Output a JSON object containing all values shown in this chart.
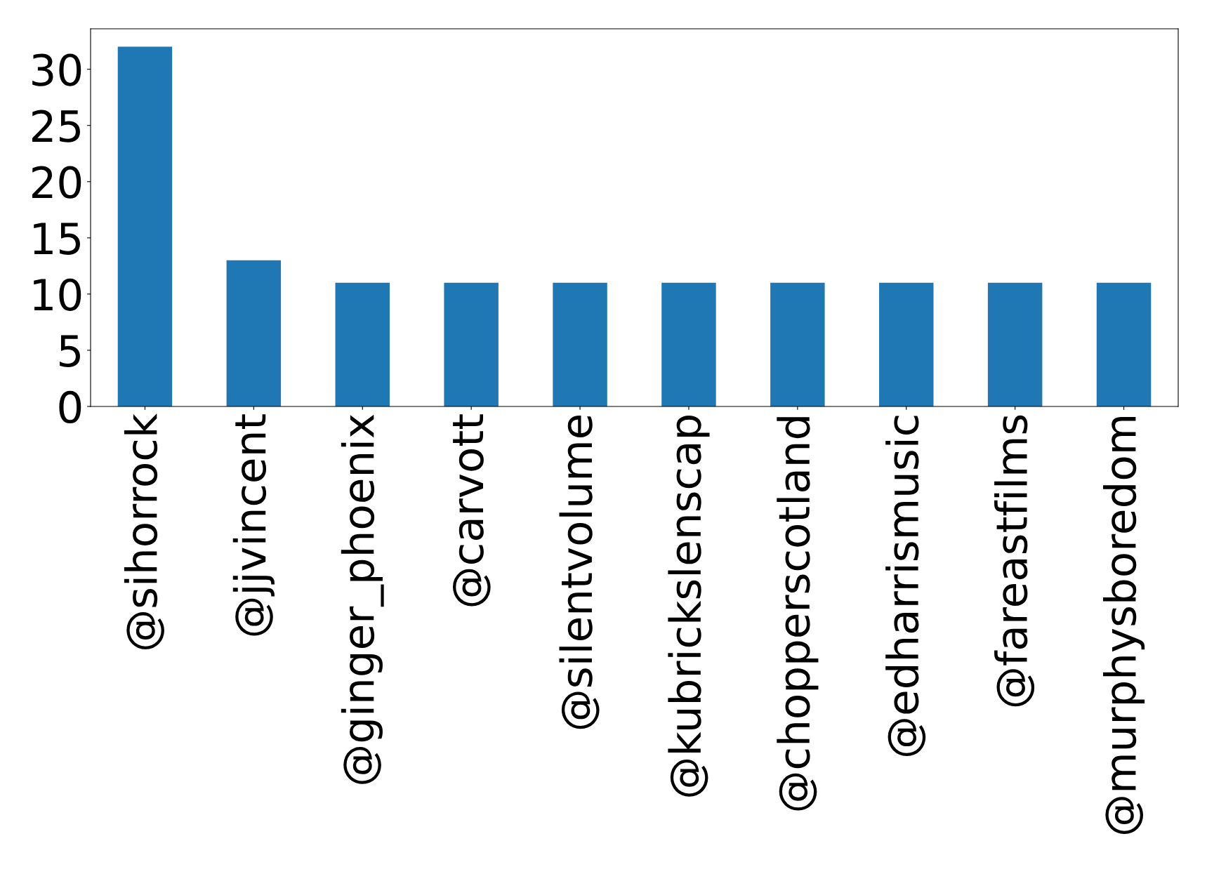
{
  "chart_data": {
    "type": "bar",
    "categories": [
      "@sihorrock",
      "@jjvincent",
      "@ginger_phoenix",
      "@carvott",
      "@silentvolume",
      "@kubrickslenscap",
      "@chopperscotland",
      "@edharrismusic",
      "@fareastfilms",
      "@murphysboredom"
    ],
    "values": [
      32,
      13,
      11,
      11,
      11,
      11,
      11,
      11,
      11,
      11
    ],
    "color": "#1f77b4",
    "ylim": [
      0,
      33.6
    ],
    "yticks": [
      0,
      5,
      10,
      15,
      20,
      25,
      30
    ],
    "grid": false
  }
}
